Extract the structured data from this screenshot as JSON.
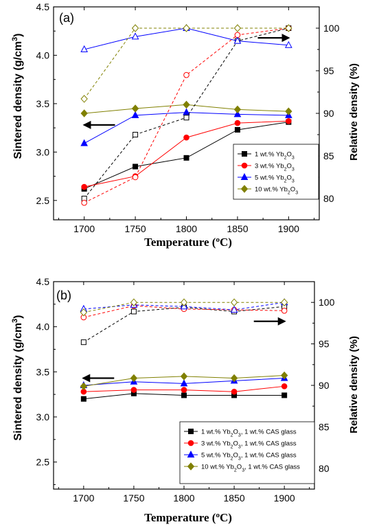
{
  "chart_data": [
    {
      "type": "line",
      "panel_label": "(a)",
      "xlabel": "Temperature (°C)",
      "ylabel": "Sintered density (g/cm³)",
      "y2label": "Relative density (%)",
      "x": [
        1700,
        1750,
        1800,
        1850,
        1900
      ],
      "xticks": [
        1700,
        1750,
        1800,
        1850,
        1900
      ],
      "xlim": [
        1670,
        1930
      ],
      "ylim": [
        2.3,
        4.5
      ],
      "yticks": [
        2.5,
        3.0,
        3.5,
        4.0,
        4.5
      ],
      "y2lim": [
        77.5,
        102.5
      ],
      "y2ticks": [
        80,
        85,
        90,
        95,
        100
      ],
      "legend_position": "center-right",
      "series": [
        {
          "name": "1 wt.% Yb2O3",
          "color": "#000000",
          "marker": "square",
          "axis": "left",
          "style": "solid",
          "values": [
            2.62,
            2.85,
            2.94,
            3.23,
            3.31
          ]
        },
        {
          "name": "3 wt.% Yb2O3",
          "color": "#ff0000",
          "marker": "circle",
          "axis": "left",
          "style": "solid",
          "values": [
            2.64,
            2.75,
            3.15,
            3.3,
            3.32
          ]
        },
        {
          "name": "5 wt.% Yb2O3",
          "color": "#0000ff",
          "marker": "triangle",
          "axis": "left",
          "style": "solid",
          "values": [
            3.09,
            3.38,
            3.41,
            3.39,
            3.38
          ]
        },
        {
          "name": "10 wt.% Yb2O3",
          "color": "#808000",
          "marker": "diamond",
          "axis": "left",
          "style": "solid",
          "values": [
            3.4,
            3.45,
            3.49,
            3.44,
            3.42
          ]
        },
        {
          "name": "",
          "color": "#000000",
          "marker": "square-open",
          "axis": "right",
          "style": "dashed",
          "values": [
            80.0,
            87.5,
            89.5,
            98.5,
            100.0
          ]
        },
        {
          "name": "",
          "color": "#ff0000",
          "marker": "circle-open",
          "axis": "right",
          "style": "dashed",
          "values": [
            79.5,
            82.5,
            94.5,
            99.2,
            100.0
          ]
        },
        {
          "name": "",
          "color": "#0000ff",
          "marker": "triangle-open",
          "axis": "right",
          "style": "solid",
          "values": [
            97.5,
            99.0,
            100.0,
            98.5,
            98.0
          ]
        },
        {
          "name": "",
          "color": "#808000",
          "marker": "diamond-open",
          "axis": "right",
          "style": "dashed",
          "values": [
            91.7,
            100.0,
            100.0,
            100.0,
            100.0
          ]
        }
      ],
      "annotations": [
        {
          "type": "arrow",
          "direction": "left",
          "x": 1715,
          "y": 3.28
        },
        {
          "type": "arrow",
          "direction": "right",
          "x": 1885,
          "y": 4.18
        }
      ]
    },
    {
      "type": "line",
      "panel_label": "(b)",
      "xlabel": "Temperature (°C)",
      "ylabel": "Sintered density (g/cm³)",
      "y2label": "Relative density (%)",
      "x": [
        1700,
        1750,
        1800,
        1850,
        1900
      ],
      "xticks": [
        1700,
        1750,
        1800,
        1850,
        1900
      ],
      "xlim": [
        1670,
        1930
      ],
      "ylim": [
        2.2,
        4.5
      ],
      "yticks": [
        2.5,
        3.0,
        3.5,
        4.0,
        4.5
      ],
      "y2lim": [
        77.5,
        102.5
      ],
      "y2ticks": [
        80,
        85,
        90,
        95,
        100
      ],
      "legend_position": "lower-right",
      "series": [
        {
          "name": "1 wt.% Yb2O3, 1 wt.% CAS glass",
          "color": "#000000",
          "marker": "square",
          "axis": "left",
          "style": "solid",
          "values": [
            3.2,
            3.26,
            3.24,
            3.24,
            3.24
          ]
        },
        {
          "name": "3 wt.% Yb2O3, 1 wt.% CAS glass",
          "color": "#ff0000",
          "marker": "circle",
          "axis": "left",
          "style": "solid",
          "values": [
            3.28,
            3.3,
            3.3,
            3.28,
            3.34
          ]
        },
        {
          "name": "5 wt.% Yb2O3, 1 wt.% CAS glass",
          "color": "#0000ff",
          "marker": "triangle",
          "axis": "left",
          "style": "solid",
          "values": [
            3.35,
            3.39,
            3.37,
            3.4,
            3.43
          ]
        },
        {
          "name": "10 wt.% Yb2O3, 1 wt.% CAS glass",
          "color": "#808000",
          "marker": "diamond",
          "axis": "left",
          "style": "solid",
          "values": [
            3.34,
            3.43,
            3.45,
            3.43,
            3.46
          ]
        },
        {
          "name": "",
          "color": "#000000",
          "marker": "square-open",
          "axis": "right",
          "style": "dashed",
          "values": [
            95.2,
            98.9,
            99.4,
            98.9,
            99.5
          ]
        },
        {
          "name": "",
          "color": "#ff0000",
          "marker": "circle-open",
          "axis": "right",
          "style": "dashed",
          "values": [
            98.2,
            99.6,
            99.2,
            99.1,
            99.0
          ]
        },
        {
          "name": "",
          "color": "#0000ff",
          "marker": "triangle-open",
          "axis": "right",
          "style": "dashed",
          "values": [
            99.2,
            99.7,
            99.5,
            99.1,
            100.0
          ]
        },
        {
          "name": "",
          "color": "#808000",
          "marker": "diamond-open",
          "axis": "right",
          "style": "dashed",
          "values": [
            98.8,
            100.0,
            100.0,
            100.0,
            100.0
          ]
        }
      ],
      "annotations": [
        {
          "type": "arrow",
          "direction": "left",
          "x": 1715,
          "y": 3.43
        },
        {
          "type": "arrow",
          "direction": "right",
          "x": 1885,
          "y": 4.06
        }
      ]
    }
  ]
}
